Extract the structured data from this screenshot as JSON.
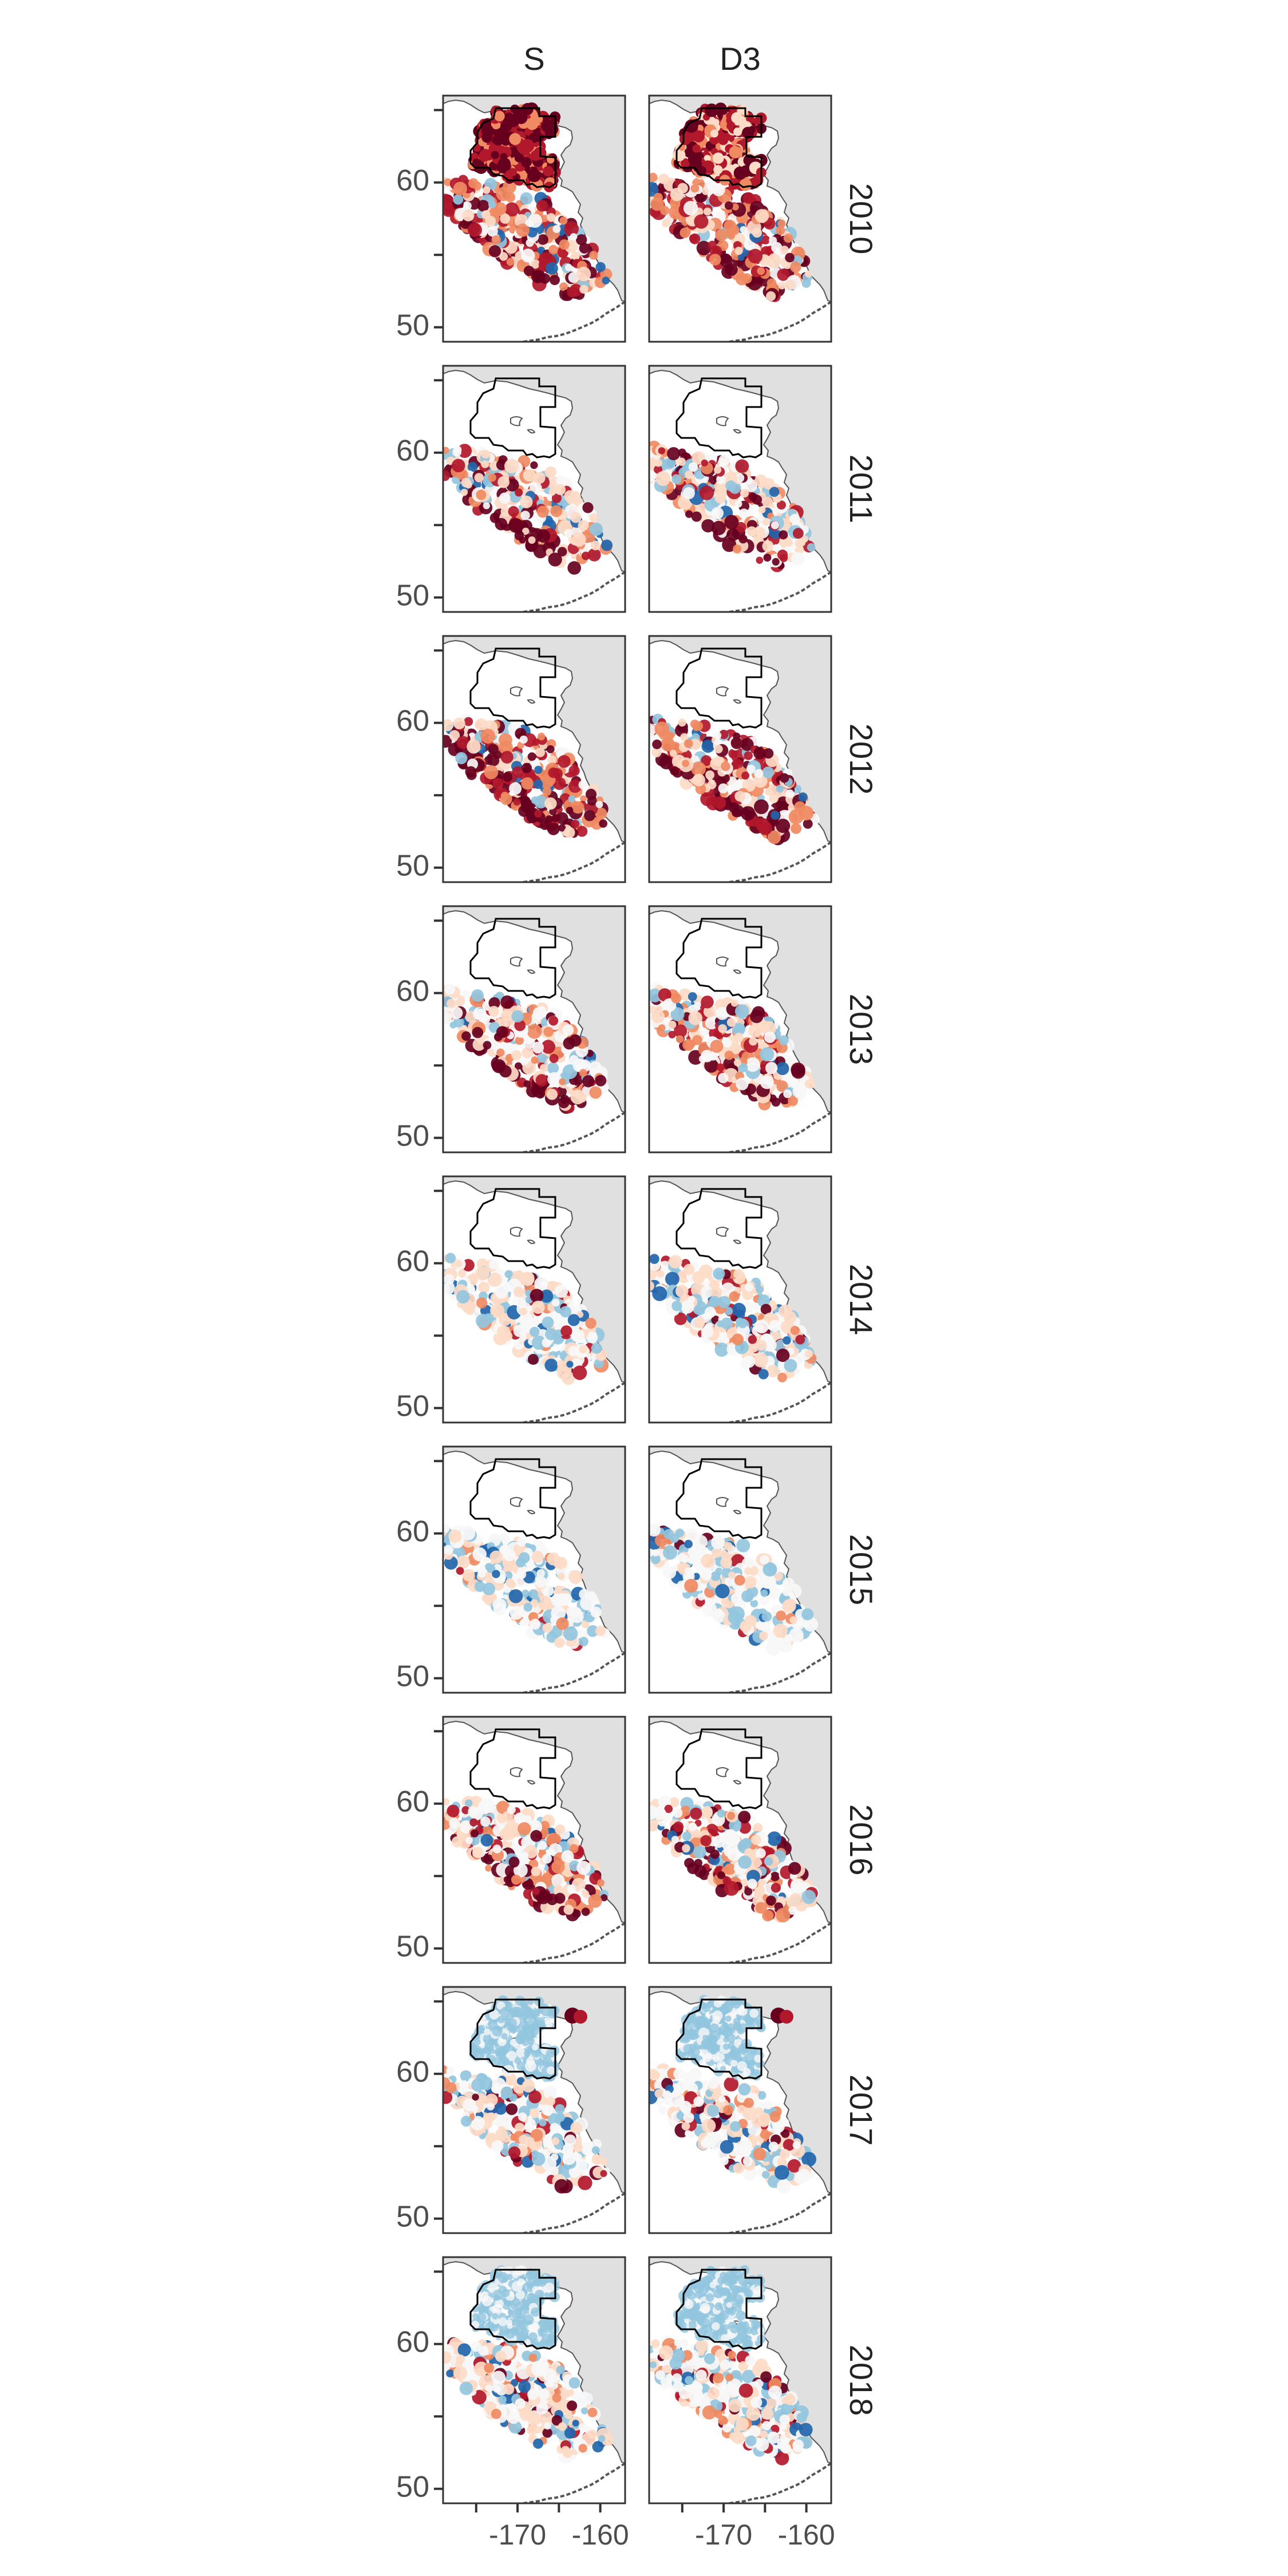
{
  "facets": {
    "columns": [
      {
        "label": "S"
      },
      {
        "label": "D3"
      }
    ],
    "rows": [
      {
        "label": "2010",
        "intensity": "high"
      },
      {
        "label": "2011",
        "intensity": "moderate"
      },
      {
        "label": "2012",
        "intensity": "high"
      },
      {
        "label": "2013",
        "intensity": "moderate"
      },
      {
        "label": "2014",
        "intensity": "low"
      },
      {
        "label": "2015",
        "intensity": "very-low"
      },
      {
        "label": "2016",
        "intensity": "moderate"
      },
      {
        "label": "2017",
        "intensity": "low"
      },
      {
        "label": "2018",
        "intensity": "low"
      }
    ]
  },
  "axes": {
    "y_ticks": [
      {
        "label": "60",
        "value": 60
      },
      {
        "label": "50",
        "value": 50
      }
    ],
    "y_minor_ticks": [
      65,
      55
    ],
    "y_range": [
      49,
      66
    ],
    "x_ticks": [
      {
        "label": "-170",
        "value": -170
      },
      {
        "label": "-160",
        "value": -160
      }
    ],
    "x_minor_ticks": [
      -175,
      -165
    ],
    "x_range": [
      -179,
      -157
    ]
  },
  "colors": {
    "land": "#e0e0e0",
    "coast": "#555555",
    "panel_border": "#333333",
    "region_outline": "#000000",
    "text": "#222222",
    "tick_text": "#4d4d4d",
    "palette": [
      "#2166ac",
      "#92c5de",
      "#f7f7f7",
      "#fddbc7",
      "#ef8a62",
      "#b2182b",
      "#67001f"
    ]
  }
}
